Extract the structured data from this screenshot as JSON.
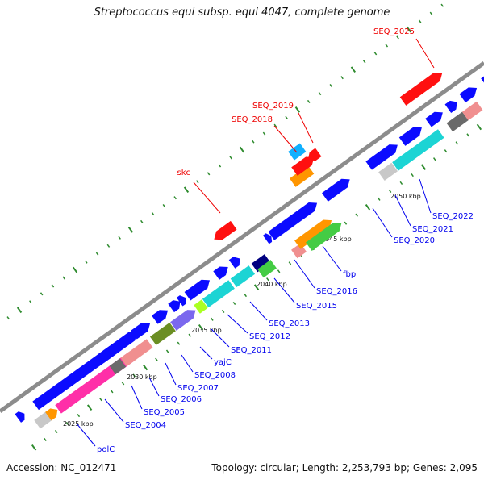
{
  "title": "Streptococcus equi subsp. equi 4047, complete genome",
  "accession": "Accession: NC_012471",
  "summary": "Topology: circular; Length: 2,253,793 bp; Genes: 2,095",
  "colors": {
    "backbone": "#8c8c8c",
    "ticks": "#2e8b2e",
    "forward_label": "#0000ee",
    "reverse_label": "#ee0000",
    "blue": "#0b0bff",
    "red": "#ff1010",
    "cyan": "#1cd4d4",
    "pink": "#ff2fa8",
    "salmon": "#f08f8f",
    "olive": "#6b8e23",
    "purple": "#7b68ee",
    "gray": "#6a6a6a",
    "lightgray": "#c8c8c8",
    "orange": "#ff9600",
    "green": "#44cc44",
    "lime": "#aaff22",
    "navy": "#000080",
    "skyblue": "#10b0ff"
  },
  "tick_labels": [
    "2025 kbp",
    "2030 kbp",
    "2035 kbp",
    "2040 kbp",
    "2045 kbp",
    "2050 kbp"
  ],
  "forward_gene_labels": [
    "polC",
    "SEQ_2004",
    "SEQ_2005",
    "SEQ_2006",
    "SEQ_2007",
    "SEQ_2008",
    "yajC",
    "SEQ_2011",
    "SEQ_2012",
    "SEQ_2013",
    "SEQ_2015",
    "SEQ_2016",
    "fbp",
    "SEQ_2020",
    "SEQ_2021",
    "SEQ_2022"
  ],
  "reverse_gene_labels": [
    "skc",
    "SEQ_2018",
    "SEQ_2019",
    "SEQ_2025"
  ]
}
